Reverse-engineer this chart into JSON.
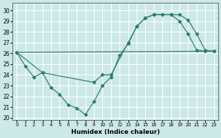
{
  "xlabel": "Humidex (Indice chaleur)",
  "xlim": [
    -0.5,
    23.5
  ],
  "ylim": [
    19.8,
    30.7
  ],
  "yticks": [
    20,
    21,
    22,
    23,
    24,
    25,
    26,
    27,
    28,
    29,
    30
  ],
  "xticks": [
    0,
    1,
    2,
    3,
    4,
    5,
    6,
    7,
    8,
    9,
    10,
    11,
    12,
    13,
    14,
    15,
    16,
    17,
    18,
    19,
    20,
    21,
    22,
    23
  ],
  "bg_color": "#cce8e8",
  "grid_color": "#ffffff",
  "line_color": "#2e7d6e",
  "curve1_x": [
    0,
    1,
    2,
    3,
    4,
    5,
    6,
    7,
    8,
    9,
    10,
    11,
    12,
    13,
    14,
    15,
    16,
    17,
    18,
    19,
    20,
    21,
    22,
    23
  ],
  "curve1_y": [
    26.1,
    24.8,
    23.8,
    24.2,
    22.8,
    22.2,
    21.2,
    20.9,
    20.3,
    21.5,
    23.0,
    23.8,
    25.8,
    26.9,
    28.5,
    29.3,
    29.6,
    29.6,
    29.6,
    29.0,
    27.8,
    26.3,
    26.2,
    26.2
  ],
  "curve2_x": [
    0,
    3,
    9,
    10,
    11,
    13,
    14,
    15,
    16,
    17,
    18,
    19,
    20,
    21,
    22,
    23
  ],
  "curve2_y": [
    26.1,
    24.2,
    23.3,
    24.0,
    24.0,
    27.0,
    28.5,
    29.3,
    29.6,
    29.6,
    29.6,
    29.6,
    29.1,
    27.8,
    26.3,
    26.2
  ],
  "line3_x": [
    0,
    23
  ],
  "line3_y": [
    26.1,
    26.2
  ]
}
